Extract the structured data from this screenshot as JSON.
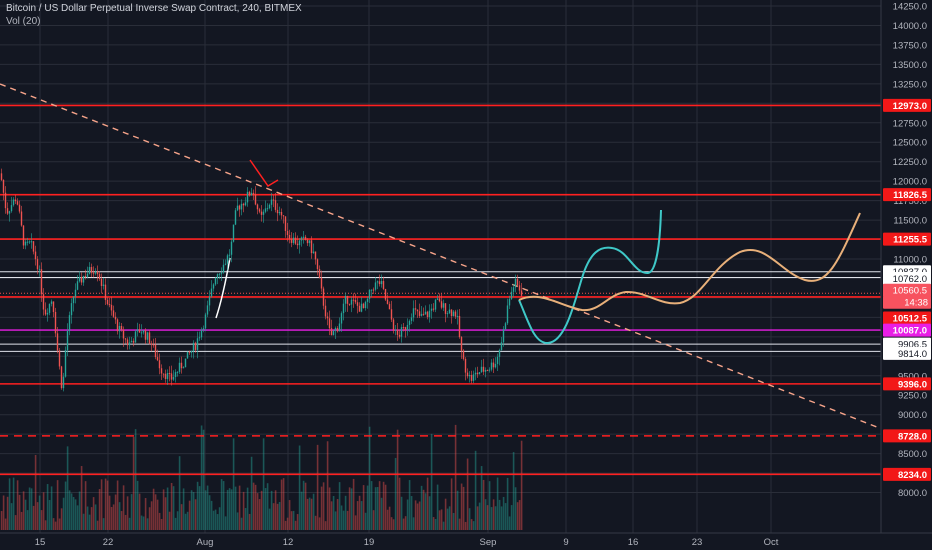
{
  "header": {
    "title": "Bitcoin / US Dollar Perpetual Inverse Swap Contract, 240, BITMEX",
    "volume_indicator": "Vol (20)"
  },
  "colors": {
    "background": "#131722",
    "grid": "#2a2e39",
    "candle_up": "#26a69a",
    "candle_down": "#ef5350",
    "level_line": "#ff2020",
    "white_line": "#e0e3eb",
    "magenta_line": "#e91ee6",
    "trendline": "#f7a48a",
    "projection_cyan": "#3fc8c8",
    "projection_orange": "#e8b07a",
    "axis_text": "#b2b5be"
  },
  "price_axis": {
    "ticks": [
      "14250.0",
      "14000.0",
      "13750.0",
      "13500.0",
      "13250.0",
      "12750.0",
      "12500.0",
      "12250.0",
      "12000.0",
      "11750.0",
      "11500.0",
      "11000.0",
      "9500.0",
      "9250.0",
      "9000.0",
      "8500.0",
      "8000.0"
    ]
  },
  "time_axis": {
    "ticks": [
      "15",
      "22",
      "Aug",
      "12",
      "19",
      "Sep",
      "9",
      "16",
      "23",
      "Oct"
    ]
  },
  "price_labels": [
    {
      "text": "12973.0",
      "style": "red"
    },
    {
      "text": "11826.5",
      "style": "red"
    },
    {
      "text": "11255.5",
      "style": "red"
    },
    {
      "text": "10837.0",
      "style": "white"
    },
    {
      "text": "10762.0",
      "style": "white"
    },
    {
      "text": "10560.5",
      "style": "current"
    },
    {
      "text": "14:38",
      "style": "timer"
    },
    {
      "text": "10512.5",
      "style": "red"
    },
    {
      "text": "10087.0",
      "style": "magenta"
    },
    {
      "text": "9906.5",
      "style": "white"
    },
    {
      "text": "9814.0",
      "style": "white"
    },
    {
      "text": "9396.0",
      "style": "red"
    },
    {
      "text": "8728.0",
      "style": "red"
    },
    {
      "text": "8234.0",
      "style": "red"
    }
  ]
}
